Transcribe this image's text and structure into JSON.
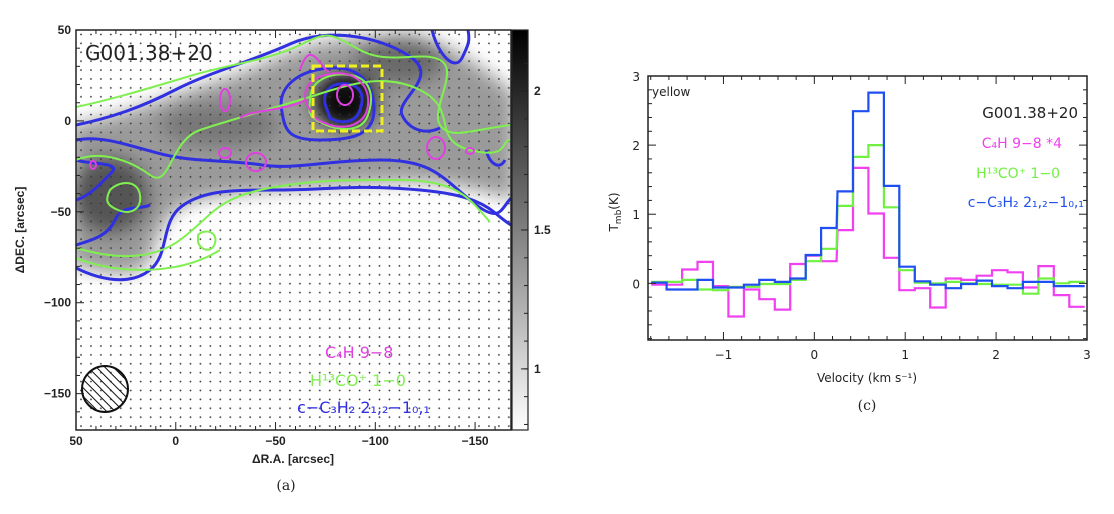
{
  "chart_data": [
    {
      "type": "heatmap",
      "panel_caption": "(a)",
      "title": "G001.38+20",
      "xlabel": "ΔR.A. [arcsec]",
      "ylabel": "ΔDEC. [arcsec]",
      "xlim": [
        50,
        -168
      ],
      "ylim": [
        -170,
        50
      ],
      "xticks": [
        "50",
        "0",
        "−50",
        "−100",
        "−150"
      ],
      "xtick_values": [
        50,
        0,
        -50,
        -100,
        -150
      ],
      "yticks": [
        "50",
        "0",
        "−50",
        "−100",
        "−150"
      ],
      "ytick_values": [
        50,
        0,
        -50,
        -100,
        -150
      ],
      "colorbar": {
        "range": [
          0.78,
          2.22
        ],
        "ticks": [
          "2",
          "1.5",
          "1"
        ],
        "tick_values": [
          2,
          1.5,
          1
        ],
        "colormap": "white-to-black"
      },
      "peak_position": [
        -82,
        12
      ],
      "highlight_box": {
        "ra": [
          -68,
          -103
        ],
        "dec": [
          30,
          -5
        ],
        "color": "#f0f020",
        "style": "dashed"
      },
      "legend": [
        {
          "label": "C₄H 9−8",
          "color": "#e040e0"
        },
        {
          "label": "H¹³CO⁺ 1−0",
          "color": "#80f050"
        },
        {
          "label": "c−C₃H₂ 2₁,₂−1₀,₁",
          "color": "#3030e0"
        }
      ],
      "beam": "hatched circle, lower-left"
    },
    {
      "type": "line",
      "style": "step",
      "panel_caption": "(c)",
      "corner_label": "yellow",
      "title": "G001.38+20",
      "xlabel": "Velocity (km s⁻¹)",
      "ylabel": {
        "main": "T",
        "sub": "mb",
        "rest": "(K)"
      },
      "xlim": [
        -1.83,
        3
      ],
      "ylim": [
        -0.82,
        3
      ],
      "xticks": [
        "−1",
        "0",
        "1",
        "2",
        "3"
      ],
      "xtick_values": [
        -1,
        0,
        1,
        2,
        3
      ],
      "yticks": [
        "0",
        "1",
        "2",
        "3"
      ],
      "ytick_values": [
        0,
        1,
        2,
        3
      ],
      "x": [
        -1.71,
        -1.54,
        -1.37,
        -1.2,
        -1.03,
        -0.86,
        -0.69,
        -0.52,
        -0.35,
        -0.18,
        -0.01,
        0.16,
        0.34,
        0.51,
        0.68,
        0.85,
        1.02,
        1.19,
        1.36,
        1.53,
        1.7,
        1.87,
        2.04,
        2.21,
        2.38,
        2.55,
        2.72,
        2.89
      ],
      "series": [
        {
          "name": "C₄H 9−8 *4",
          "color": "#f040f0",
          "values": [
            -0.02,
            -0.02,
            0.2,
            0.31,
            -0.04,
            -0.48,
            -0.09,
            -0.23,
            -0.38,
            0.28,
            0.4,
            0.32,
            0.77,
            1.67,
            1.01,
            0.37,
            -0.1,
            -0.07,
            -0.35,
            0.07,
            0.05,
            0.11,
            0.19,
            0.16,
            -0.06,
            0.25,
            -0.17,
            -0.34
          ]
        },
        {
          "name": "H¹³CO⁺ 1−0",
          "color": "#70f040",
          "values": [
            0.02,
            0.02,
            0.05,
            -0.09,
            -0.1,
            -0.05,
            -0.05,
            -0.01,
            -0.01,
            0.05,
            0.32,
            0.5,
            1.12,
            1.83,
            2.0,
            1.1,
            0.19,
            0.01,
            0.0,
            0.02,
            0.0,
            -0.01,
            -0.02,
            -0.02,
            -0.15,
            0.07,
            0.0,
            0.02
          ]
        },
        {
          "name": "c−C₃H₂ 2₁,₂−1₀,₁",
          "color": "#1f4ff0",
          "values": [
            0.01,
            -0.09,
            -0.09,
            0.05,
            -0.06,
            -0.06,
            -0.02,
            0.05,
            0.02,
            0.07,
            0.41,
            0.8,
            1.33,
            2.49,
            2.76,
            1.41,
            0.24,
            0.03,
            -0.02,
            -0.07,
            -0.01,
            0.04,
            -0.04,
            -0.07,
            0.02,
            0.02,
            -0.04,
            -0.04
          ]
        }
      ]
    }
  ]
}
